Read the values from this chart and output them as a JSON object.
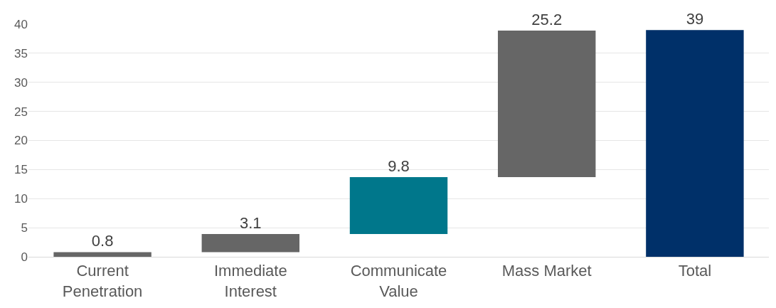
{
  "chart_data": {
    "type": "bar",
    "categories": [
      "Current Penetration",
      "Immediate Interest",
      "Communicate Value",
      "Mass Market",
      "Total"
    ],
    "values": [
      0.8,
      3.1,
      9.8,
      25.2,
      39
    ],
    "base": [
      0,
      0.8,
      3.9,
      13.7,
      0
    ],
    "colors": [
      "#666666",
      "#666666",
      "#00778b",
      "#666666",
      "#003069"
    ],
    "data_labels": true,
    "ylim": [
      0,
      40
    ],
    "yticks": [
      0,
      5,
      10,
      15,
      20,
      25,
      30,
      35,
      40
    ],
    "grid": "y"
  }
}
